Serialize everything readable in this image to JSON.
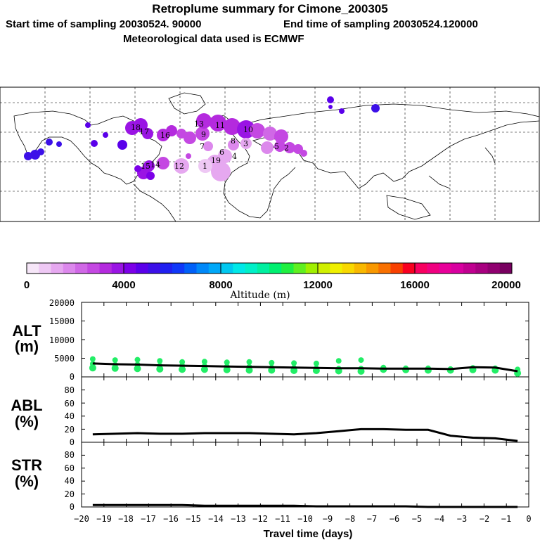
{
  "header": {
    "title": "Retroplume summary for Cimone_200305",
    "start_label": "Start time of sampling 20030524. 90000",
    "end_label": "End time of sampling 20030524.120000",
    "met_label": "Meteorological data used is ECMWF"
  },
  "colors": {
    "alt_points": "#22ee66",
    "line": "#000000"
  },
  "colorbar": {
    "label": "Altitude (m)",
    "ticks": [
      "0",
      "4000",
      "8000",
      "12000",
      "16000",
      "20000"
    ],
    "colors": [
      "#f6e6f8",
      "#eec8f4",
      "#e6a8f0",
      "#dc88ec",
      "#d068e6",
      "#c448e2",
      "#b42ade",
      "#9a14e4",
      "#7c00e8",
      "#5a00ea",
      "#3c10e8",
      "#2020f0",
      "#1038f8",
      "#0060f8",
      "#0088f8",
      "#00a8f8",
      "#00c8f0",
      "#00e8e8",
      "#00f0c8",
      "#00f0a0",
      "#00f070",
      "#20f040",
      "#60f020",
      "#a0f000",
      "#d0f000",
      "#f0f000",
      "#f8d800",
      "#f8b800",
      "#f89800",
      "#f87000",
      "#f84000",
      "#f80020",
      "#f80060",
      "#f00080",
      "#e8009a",
      "#d800a0",
      "#c00090",
      "#a80080",
      "#900070",
      "#780060"
    ]
  },
  "map": {
    "number_labels": [
      {
        "text": "18"
      },
      {
        "text": "17"
      },
      {
        "text": "16"
      },
      {
        "text": "13"
      },
      {
        "text": "11"
      },
      {
        "text": "10"
      },
      {
        "text": "9"
      },
      {
        "text": "8"
      },
      {
        "text": "15"
      },
      {
        "text": "14"
      },
      {
        "text": "12"
      },
      {
        "text": "19"
      },
      {
        "text": "5"
      },
      {
        "text": "3"
      },
      {
        "text": "2"
      },
      {
        "text": "1"
      },
      {
        "text": "7"
      },
      {
        "text": "6"
      },
      {
        "text": "4"
      }
    ]
  },
  "chart_data": [
    {
      "type": "scatter",
      "panel": "ALT",
      "ylabel_line1": "ALT",
      "ylabel_line2": "(m)",
      "ylim": [
        0,
        20000
      ],
      "yticks": [
        "0",
        "5000",
        "10000",
        "15000",
        "20000"
      ],
      "xlim": [
        -20,
        0
      ],
      "median_line": {
        "x": [
          -19.5,
          -18.5,
          -17.5,
          -16.5,
          -15.5,
          -14.5,
          -13.5,
          -12.5,
          -11.5,
          -10.5,
          -9.5,
          -8.5,
          -7.5,
          -6.5,
          -5.5,
          -4.5,
          -3.5,
          -2.5,
          -1.5,
          -0.5
        ],
        "y": [
          3600,
          3400,
          3300,
          3100,
          3000,
          2900,
          2800,
          2700,
          2600,
          2500,
          2400,
          2300,
          2300,
          2200,
          2200,
          2200,
          2100,
          2600,
          2500,
          1500
        ]
      },
      "points": [
        {
          "x": -19.5,
          "y": [
            4800,
            3500,
            2400
          ]
        },
        {
          "x": -18.5,
          "y": [
            4500,
            3200,
            2300
          ]
        },
        {
          "x": -17.5,
          "y": [
            4600,
            3300,
            2200
          ]
        },
        {
          "x": -16.5,
          "y": [
            4300,
            3000,
            2100
          ]
        },
        {
          "x": -15.5,
          "y": [
            4000,
            3000,
            2000
          ]
        },
        {
          "x": -14.5,
          "y": [
            4100,
            2900,
            2000
          ]
        },
        {
          "x": -13.5,
          "y": [
            3900,
            2800,
            1900
          ]
        },
        {
          "x": -12.5,
          "y": [
            4000,
            2700,
            1800
          ]
        },
        {
          "x": -11.5,
          "y": [
            3800,
            2500,
            1800
          ]
        },
        {
          "x": -10.5,
          "y": [
            3700,
            2400,
            1700
          ]
        },
        {
          "x": -9.5,
          "y": [
            3600,
            2300,
            1700
          ]
        },
        {
          "x": -8.5,
          "y": [
            4300,
            2200,
            1600
          ]
        },
        {
          "x": -7.5,
          "y": [
            4500,
            2200,
            1500
          ]
        },
        {
          "x": -6.5,
          "y": [
            2500,
            2000
          ]
        },
        {
          "x": -5.5,
          "y": [
            2300,
            1900
          ]
        },
        {
          "x": -4.5,
          "y": [
            2300,
            1800
          ]
        },
        {
          "x": -3.5,
          "y": [
            2100,
            1800
          ]
        },
        {
          "x": -2.5,
          "y": [
            2400,
            1900
          ]
        },
        {
          "x": -1.5,
          "y": [
            2300,
            1800
          ]
        },
        {
          "x": -0.5,
          "y": [
            2000,
            1000
          ]
        }
      ]
    },
    {
      "type": "line",
      "panel": "ABL",
      "ylabel_line1": "ABL",
      "ylabel_line2": "(%)",
      "ylim": [
        0,
        100
      ],
      "yticks": [
        "0",
        "20",
        "40",
        "60",
        "80"
      ],
      "x": [
        -19.5,
        -18.5,
        -17.5,
        -16.5,
        -15.5,
        -14.5,
        -13.5,
        -12.5,
        -11.5,
        -10.5,
        -9.5,
        -8.5,
        -7.5,
        -6.5,
        -5.5,
        -4.5,
        -3.5,
        -2.5,
        -1.5,
        -0.5
      ],
      "y": [
        12,
        13,
        14,
        13,
        13,
        14,
        14,
        14,
        13,
        12,
        14,
        17,
        20,
        20,
        19,
        19,
        10,
        7,
        6,
        2
      ]
    },
    {
      "type": "line",
      "panel": "STR",
      "ylabel_line1": "STR",
      "ylabel_line2": "(%)",
      "ylim": [
        0,
        100
      ],
      "yticks": [
        "0",
        "20",
        "40",
        "60",
        "80"
      ],
      "x": [
        -19.5,
        -18.5,
        -17.5,
        -16.5,
        -15.5,
        -14.5,
        -13.5,
        -12.5,
        -11.5,
        -10.5,
        -9.5,
        -8.5,
        -7.5,
        -6.5,
        -5.5,
        -4.5,
        -3.5,
        -2.5,
        -1.5,
        -0.5
      ],
      "y": [
        3,
        3,
        3,
        3,
        3,
        2,
        2,
        2,
        2,
        2,
        1,
        1,
        1,
        1,
        1,
        0,
        0,
        0,
        0,
        0
      ]
    }
  ],
  "xaxis": {
    "label": "Travel time (days)",
    "ticks": [
      "−20",
      "−19",
      "−18",
      "−17",
      "−16",
      "−15",
      "−14",
      "−13",
      "−12",
      "−11",
      "−10",
      "−9",
      "−8",
      "−7",
      "−6",
      "−5",
      "−4",
      "−3",
      "−2",
      "−1",
      "0"
    ]
  }
}
